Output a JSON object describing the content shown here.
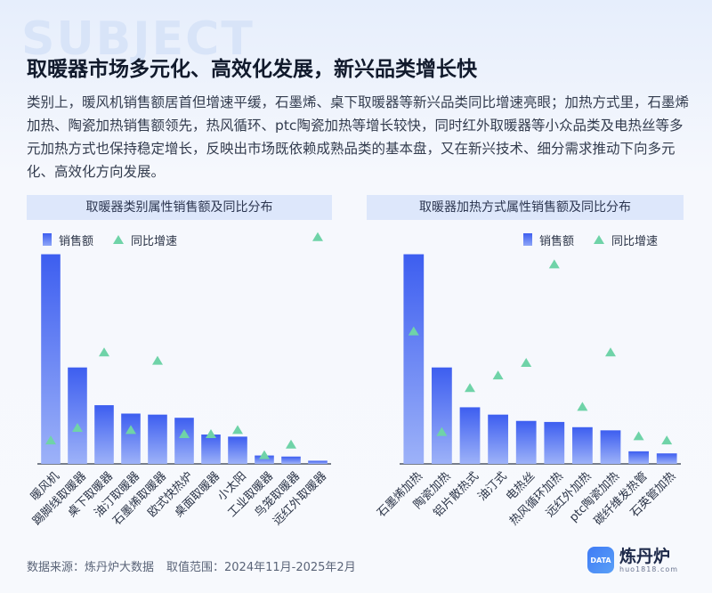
{
  "background_word": "SUBJECT",
  "title": "取暖器市场多元化、高效化发展，新兴品类增长快",
  "description": "类别上，暖风机销售额居首但增速平缓，石墨烯、桌下取暖器等新兴品类同比增速亮眼；加热方式里，石墨烯加热、陶瓷加热销售额领先，热风循环、ptc陶瓷加热等增长较快，同时红外取暖器等小众品类及电热丝等多元加热方式也保持稳定增长，反映出市场既依赖成熟品类的基本盘，又在新兴技术、细分需求推动下向多元化、高效化方向发展。",
  "legend": {
    "sales": "销售额",
    "growth": "同比增速"
  },
  "colors": {
    "bar_top": "#3d5ef0",
    "bar_bottom": "#9db2f8",
    "marker": "#6fd3a8",
    "panel_bg": "#dde7fb"
  },
  "chart_data": [
    {
      "type": "bar",
      "title": "取暖器类别属性销售额及同比分布",
      "categories": [
        "暖风机",
        "踢脚线取暖器",
        "桌下取暖器",
        "油汀取暖器",
        "石墨烯取暖器",
        "欧式快热炉",
        "桌面取暖器",
        "小太阳",
        "工业取暖器",
        "鸟笼取暖器",
        "远红外取暖器"
      ],
      "series": [
        {
          "name": "销售额",
          "kind": "bar",
          "values": [
            100,
            46,
            28,
            24,
            23.5,
            22,
            14,
            13,
            4,
            3.5,
            1.5
          ]
        },
        {
          "name": "同比增速",
          "kind": "marker",
          "values": [
            11,
            17,
            53,
            16,
            49,
            14,
            14,
            16,
            4,
            9,
            108
          ]
        }
      ],
      "ylim": [
        0,
        110
      ]
    },
    {
      "type": "bar",
      "title": "取暖器加热方式属性销售额及同比分布",
      "categories": [
        "石墨烯加热",
        "陶瓷加热",
        "铝片散热式",
        "油汀式",
        "电热丝",
        "热风循环加热",
        "远红外加热",
        "ptc陶瓷加热",
        "碳纤维发热管",
        "石英管加热"
      ],
      "series": [
        {
          "name": "销售额",
          "kind": "bar",
          "values": [
            100,
            46,
            27,
            23.5,
            20.5,
            20,
            17.5,
            16,
            6,
            5
          ]
        },
        {
          "name": "同比增速",
          "kind": "marker",
          "values": [
            63,
            15,
            36,
            42,
            48,
            95,
            27,
            53,
            13,
            11
          ]
        }
      ],
      "ylim": [
        0,
        110
      ]
    }
  ],
  "footer": {
    "source": "数据来源：炼丹炉大数据",
    "range": "取值范围：2024年11月-2025年2月"
  },
  "logo": {
    "name": "炼丹炉",
    "url": "huo1818.com",
    "badge": "DATA"
  }
}
